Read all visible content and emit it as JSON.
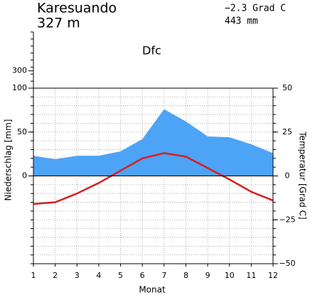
{
  "header": {
    "station": "Karesuando",
    "elevation": "327 m",
    "mean_temperature": "−2.3 Grad C",
    "annual_precipitation": "443 mm",
    "climate_class": "Dfc"
  },
  "chart_data": {
    "type": "climate",
    "x_label": "Monat",
    "y_label": "Niederschlag [mm]",
    "y2_label": "Temperatur [Grad C]",
    "x": [
      1,
      2,
      3,
      4,
      5,
      6,
      7,
      8,
      9,
      10,
      11,
      12
    ],
    "xlim": [
      1,
      12
    ],
    "xticks": [
      1,
      2,
      3,
      4,
      5,
      6,
      7,
      8,
      9,
      10,
      11,
      12
    ],
    "ylim": [
      -100,
      100
    ],
    "yticks": [
      0,
      50,
      100
    ],
    "y_upper_lim": [
      100,
      750
    ],
    "y_upper_ticks": [
      300
    ],
    "y2lim": [
      -50,
      50
    ],
    "y2ticks": [
      {
        "value": -50,
        "label": "−50"
      },
      {
        "value": -25,
        "label": "−25"
      },
      0,
      25,
      50
    ],
    "grid": true,
    "series": [
      {
        "name": "Niederschlag",
        "color": "#4da3f5",
        "values": [
          23,
          19,
          23,
          23,
          28,
          42,
          76,
          62,
          45,
          44,
          36,
          26
        ]
      },
      {
        "name": "Temperatur",
        "color": "#dd1c1c",
        "axis": "y2",
        "values": [
          -16,
          -15,
          -10,
          -4,
          3,
          10,
          13,
          11,
          4.5,
          -2,
          -9,
          -14
        ]
      }
    ]
  }
}
